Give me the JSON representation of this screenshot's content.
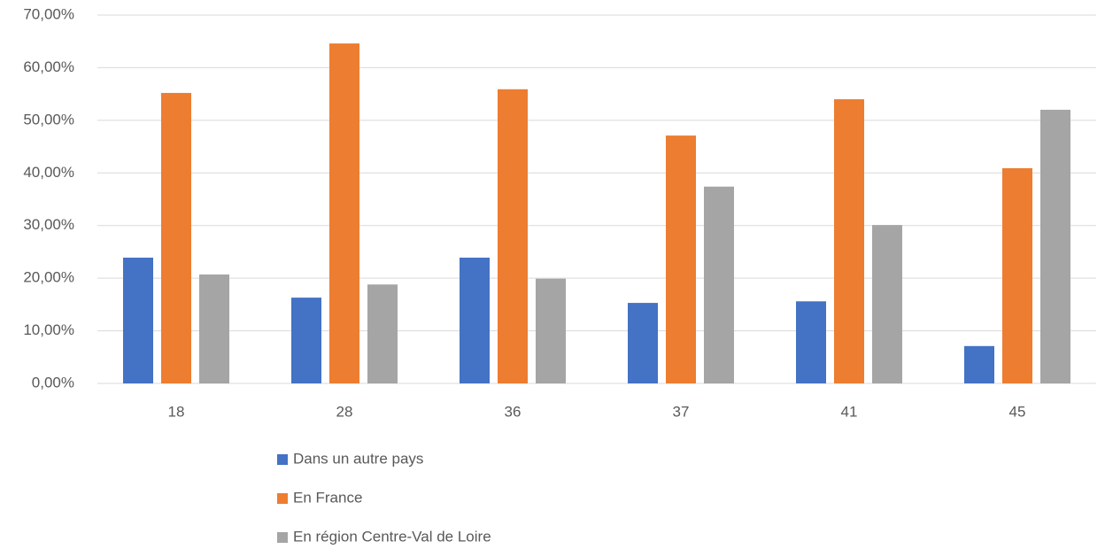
{
  "chart_data": {
    "type": "bar",
    "categories": [
      "18",
      "28",
      "36",
      "37",
      "41",
      "45"
    ],
    "series": [
      {
        "name": "Dans un autre pays",
        "color": "#4472c4",
        "values": [
          23.9,
          16.3,
          23.9,
          15.3,
          15.6,
          7.1
        ]
      },
      {
        "name": "En France",
        "color": "#ed7d31",
        "values": [
          55.2,
          64.6,
          55.9,
          47.1,
          54.0,
          40.9
        ]
      },
      {
        "name": "En région Centre-Val de Loire",
        "color": "#a5a5a5",
        "values": [
          20.7,
          18.8,
          19.9,
          37.4,
          30.1,
          52.0
        ]
      }
    ],
    "ylim": [
      0,
      70
    ],
    "yticks": [
      {
        "value": 0,
        "label": "0,00%"
      },
      {
        "value": 10,
        "label": "10,00%"
      },
      {
        "value": 20,
        "label": "20,00%"
      },
      {
        "value": 30,
        "label": "30,00%"
      },
      {
        "value": 40,
        "label": "40,00%"
      },
      {
        "value": 50,
        "label": "50,00%"
      },
      {
        "value": 60,
        "label": "60,00%"
      },
      {
        "value": 70,
        "label": "70,00%"
      }
    ],
    "grid": true,
    "legend": "bottom"
  }
}
